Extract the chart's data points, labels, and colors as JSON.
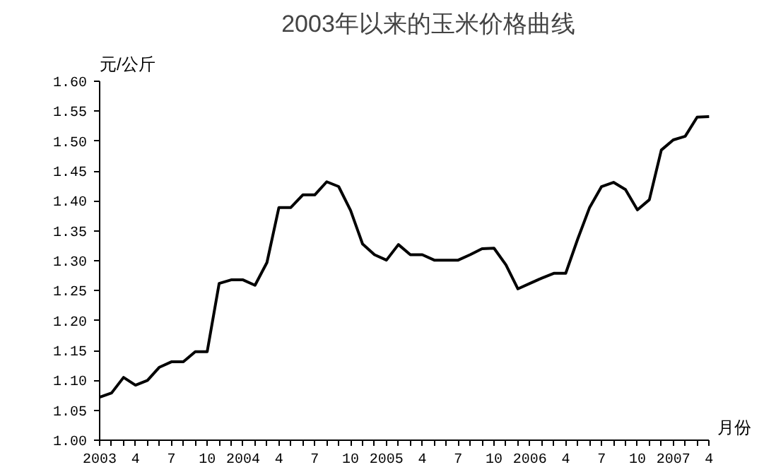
{
  "chart_data": {
    "type": "line",
    "title": "2003年以来的玉米价格曲线",
    "xlabel": "月份",
    "ylabel": "元/公斤",
    "categories": [
      "2003",
      null,
      null,
      "4",
      null,
      null,
      "7",
      null,
      null,
      "10",
      null,
      null,
      "2004",
      null,
      null,
      "4",
      null,
      null,
      "7",
      null,
      null,
      "10",
      null,
      null,
      "2005",
      null,
      null,
      "4",
      null,
      null,
      "7",
      null,
      null,
      "10",
      null,
      null,
      "2006",
      null,
      null,
      "4",
      null,
      null,
      "7",
      null,
      null,
      "10",
      null,
      null,
      "2007",
      null,
      null,
      "4"
    ],
    "series": [
      {
        "color": "#000000",
        "values": [
          1.072,
          1.079,
          1.105,
          1.092,
          1.1,
          1.122,
          1.131,
          1.131,
          1.148,
          1.148,
          1.262,
          1.268,
          1.268,
          1.259,
          1.297,
          1.389,
          1.389,
          1.41,
          1.41,
          1.432,
          1.424,
          1.384,
          1.328,
          1.31,
          1.301,
          1.327,
          1.31,
          1.31,
          1.301,
          1.301,
          1.301,
          1.31,
          1.32,
          1.321,
          1.293,
          1.253,
          1.262,
          1.271,
          1.279,
          1.279,
          1.336,
          1.389,
          1.424,
          1.431,
          1.419,
          1.385,
          1.402,
          1.485,
          1.502,
          1.508,
          1.54,
          1.541
        ]
      }
    ],
    "ylim": [
      1.0,
      1.6
    ],
    "yticks": [
      {
        "value": 1.0,
        "label": "1.00"
      },
      {
        "value": 1.05,
        "label": "1.05"
      },
      {
        "value": 1.1,
        "label": "1.10"
      },
      {
        "value": 1.15,
        "label": "1.15"
      },
      {
        "value": 1.2,
        "label": "1.20"
      },
      {
        "value": 1.25,
        "label": "1.25"
      },
      {
        "value": 1.3,
        "label": "1.30"
      },
      {
        "value": 1.35,
        "label": "1.35"
      },
      {
        "value": 1.4,
        "label": "1.40"
      },
      {
        "value": 1.45,
        "label": "1.45"
      },
      {
        "value": 1.5,
        "label": "1.50"
      },
      {
        "value": 1.55,
        "label": "1.55"
      },
      {
        "value": 1.6,
        "label": "1.60"
      }
    ],
    "grid": false,
    "marker": "none",
    "line_style": "solid"
  }
}
